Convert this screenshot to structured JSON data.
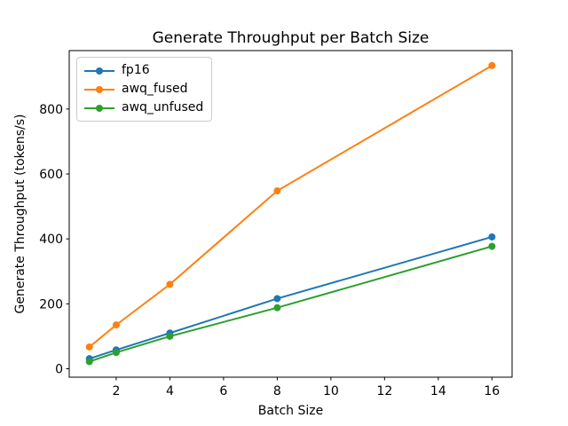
{
  "figure": {
    "background": "#ffffff",
    "text_color": "#000000",
    "spine_color": "#000000",
    "legend_border_color": "#cccccc"
  },
  "chart_data": {
    "type": "line",
    "title": "Generate Throughput per Batch Size",
    "xlabel": "Batch Size",
    "ylabel": "Generate Throughput (tokens/s)",
    "x": [
      1,
      2,
      4,
      8,
      16
    ],
    "series": [
      {
        "name": "fp16",
        "color": "#1f77b4",
        "values": [
          31,
          58,
          110,
          216,
          406
        ]
      },
      {
        "name": "awq_fused",
        "color": "#ff7f0e",
        "values": [
          67,
          135,
          260,
          548,
          934
        ]
      },
      {
        "name": "awq_unfused",
        "color": "#2ca02c",
        "values": [
          22,
          50,
          100,
          188,
          377
        ]
      }
    ],
    "xticks": [
      2,
      4,
      6,
      8,
      10,
      12,
      14,
      16
    ],
    "yticks": [
      0,
      200,
      400,
      600,
      800
    ],
    "xlim": [
      0.25,
      16.75
    ],
    "ylim": [
      -26,
      980
    ],
    "grid": false,
    "marker": "o",
    "legend_position": "upper left"
  }
}
